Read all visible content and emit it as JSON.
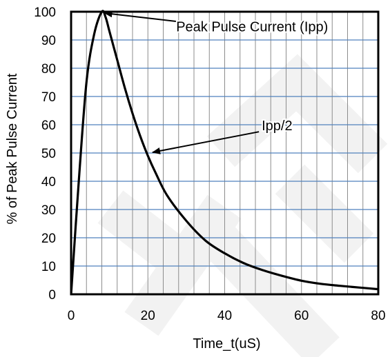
{
  "chart_data": {
    "type": "line",
    "title": "",
    "xlabel": "Time_t(uS)",
    "ylabel": "% of Peak Pulse Current",
    "xlim": [
      0,
      80
    ],
    "ylim": [
      0,
      100
    ],
    "x_ticks": [
      0,
      20,
      40,
      60,
      80
    ],
    "x_tick_labels": [
      "0",
      "20",
      "40",
      "60",
      "80"
    ],
    "y_ticks": [
      0,
      10,
      20,
      30,
      40,
      50,
      60,
      70,
      80,
      90,
      100
    ],
    "y_tick_labels": [
      "0",
      "10",
      "20",
      "30",
      "40",
      "50",
      "60",
      "70",
      "80",
      "90",
      "100"
    ],
    "grid": {
      "vertical_every": 4,
      "horizontal_every": 10,
      "vertical_color": "#8c8c8c",
      "horizontal_color": "#4f81bd"
    },
    "series": [
      {
        "x": [
          0,
          2,
          4,
          6,
          8,
          9,
          10,
          12,
          14,
          16,
          18,
          20,
          22,
          25,
          30,
          35,
          40,
          45,
          50,
          55,
          60,
          65,
          70,
          75,
          80
        ],
        "y": [
          0,
          40,
          75,
          92,
          100,
          98,
          93,
          83,
          73,
          64,
          56,
          49,
          43,
          35,
          26,
          19,
          14.5,
          11,
          8.5,
          6.5,
          4.8,
          3.7,
          3.0,
          2.4,
          1.8
        ],
        "color": "#000000"
      }
    ],
    "annotations": [
      {
        "text": "Peak Pulse Current (Ipp)",
        "x": 8,
        "y": 100,
        "label_x": 27,
        "label_y": 93
      },
      {
        "text": "Ipp/2",
        "x": 20.5,
        "y": 50,
        "label_x": 50,
        "label_y": 58
      }
    ]
  }
}
